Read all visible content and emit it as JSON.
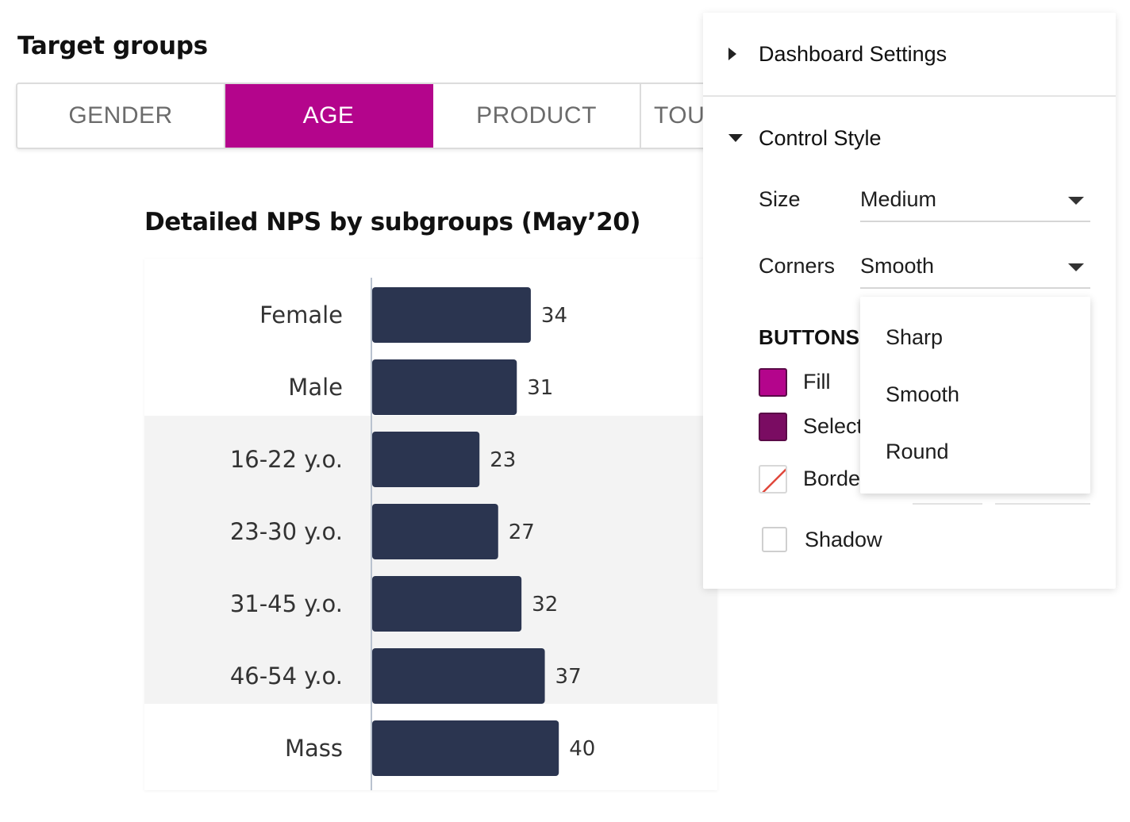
{
  "page": {
    "title": "Target groups"
  },
  "tabs": [
    {
      "label": "GENDER",
      "active": false
    },
    {
      "label": "AGE",
      "active": true
    },
    {
      "label": "PRODUCT",
      "active": false
    },
    {
      "label": "TOU",
      "active": false
    }
  ],
  "colors": {
    "accent": "#b4058c",
    "selected": "#7a0c62",
    "bar": "#2b3550",
    "band": "#f3f3f3"
  },
  "chart_title": "Detailed NPS by subgroups (May’20)",
  "chart_data": {
    "type": "bar",
    "orientation": "horizontal",
    "categories": [
      "Female",
      "Male",
      "16-22 y.o.",
      "23-30 y.o.",
      "31-45 y.o.",
      "46-54 y.o.",
      "Mass"
    ],
    "values": [
      34,
      31,
      23,
      27,
      32,
      37,
      40
    ],
    "value_labels": [
      "34",
      "31",
      "23",
      "27",
      "32",
      "37",
      "40"
    ],
    "group_bands": [
      {
        "from": 2,
        "to": 5,
        "shaded": true
      }
    ]
  },
  "settings": {
    "dashboard_label": "Dashboard Settings",
    "control_style_label": "Control Style",
    "size": {
      "label": "Size",
      "value": "Medium"
    },
    "corners": {
      "label": "Corners",
      "value": "Smooth"
    },
    "buttons_heading": "BUTTONS",
    "fill_label": "Fill",
    "selected_label": "Select",
    "border_label": "Borde",
    "shadow_label": "Shadow"
  },
  "corners_options": [
    "Sharp",
    "Smooth",
    "Round"
  ]
}
